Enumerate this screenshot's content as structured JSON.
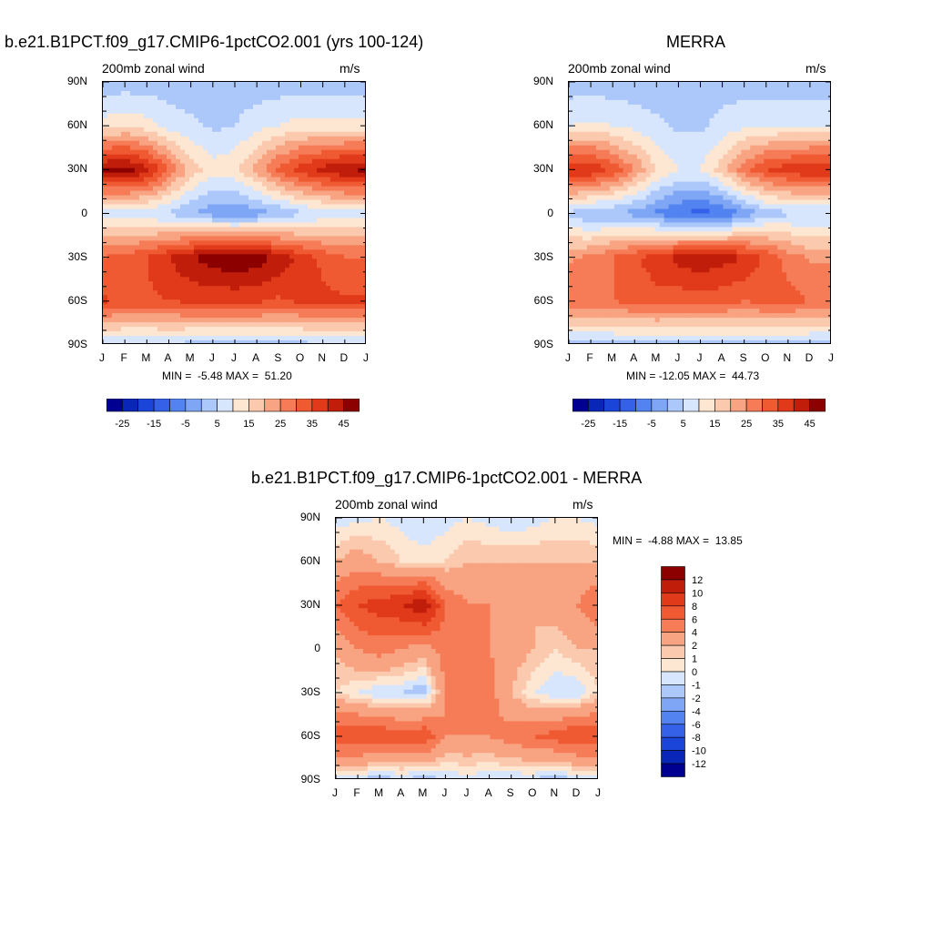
{
  "panels": [
    {
      "id": "model",
      "title": "b.e21.B1PCT.f09_g17.CMIP6-1pctCO2.001 (yrs 100-124)",
      "left_label": "200mb zonal wind",
      "units": "m/s",
      "min_label": "MIN =",
      "min_value": "-5.48",
      "max_label": "MAX =",
      "max_value": "51.20"
    },
    {
      "id": "merra",
      "title": "MERRA",
      "left_label": "200mb zonal wind",
      "units": "m/s",
      "min_label": "MIN =",
      "min_value": "-12.05",
      "max_label": "MAX =",
      "max_value": "44.73"
    },
    {
      "id": "diff",
      "title": "b.e21.B1PCT.f09_g17.CMIP6-1pctCO2.001 - MERRA",
      "left_label": "200mb zonal wind",
      "units": "m/s",
      "min_label": "MIN =",
      "min_value": "-4.88",
      "max_label": "MAX =",
      "max_value": "13.85"
    }
  ],
  "axes": {
    "y_ticks": [
      "90N",
      "60N",
      "30N",
      "0",
      "30S",
      "60S",
      "90S"
    ],
    "x_ticks": [
      "J",
      "F",
      "M",
      "A",
      "M",
      "J",
      "J",
      "A",
      "S",
      "O",
      "N",
      "D",
      "J"
    ]
  },
  "colorbar_abs": {
    "labels": [
      "-25",
      "-15",
      "-5",
      "5",
      "15",
      "25",
      "35",
      "45"
    ],
    "levels": [
      -30,
      -25,
      -20,
      -15,
      -10,
      -5,
      0,
      5,
      10,
      15,
      20,
      25,
      30,
      35,
      40,
      45,
      50
    ],
    "colors": [
      "#000090",
      "#0a26b8",
      "#1b45d8",
      "#3560e8",
      "#5283f0",
      "#7ea6f5",
      "#acc8fa",
      "#d7e6fc",
      "#fde6d2",
      "#fbc9ad",
      "#f8a381",
      "#f57c57",
      "#f05a33",
      "#e03a1a",
      "#c01e0a",
      "#8c0000"
    ]
  },
  "colorbar_diff": {
    "labels": [
      "12",
      "10",
      "8",
      "6",
      "4",
      "2",
      "1",
      "0",
      "-1",
      "-2",
      "-4",
      "-6",
      "-8",
      "-10",
      "-12"
    ],
    "colors": [
      "#8c0000",
      "#c01e0a",
      "#e03a1a",
      "#f05a33",
      "#f57c57",
      "#f8a381",
      "#fbc9ad",
      "#fde6d2",
      "#d7e6fc",
      "#acc8fa",
      "#7ea6f5",
      "#5283f0",
      "#3560e8",
      "#1b45d8",
      "#0a26b8",
      "#000090"
    ]
  },
  "chart_data": [
    {
      "type": "heatmap",
      "title": "b.e21.B1PCT.f09_g17.CMIP6-1pctCO2.001 (yrs 100-124)",
      "variable": "200mb zonal wind",
      "units": "m/s",
      "x": [
        "J",
        "F",
        "M",
        "A",
        "M",
        "J",
        "J",
        "A",
        "S",
        "O",
        "N",
        "D",
        "J"
      ],
      "y": [
        90,
        60,
        30,
        0,
        -30,
        -60,
        -90
      ],
      "values": [
        [
          2,
          2,
          2,
          2,
          2,
          2,
          2,
          2,
          2,
          2,
          2,
          2,
          2
        ],
        [
          12,
          14,
          12,
          8,
          6,
          4,
          5,
          8,
          10,
          12,
          12,
          12,
          12
        ],
        [
          46,
          48,
          42,
          30,
          18,
          12,
          14,
          22,
          32,
          38,
          42,
          45,
          46
        ],
        [
          8,
          6,
          6,
          4,
          0,
          -3,
          -4,
          -3,
          0,
          4,
          6,
          8,
          8
        ],
        [
          30,
          32,
          35,
          40,
          45,
          48,
          50,
          48,
          44,
          38,
          34,
          30,
          30
        ],
        [
          36,
          34,
          34,
          35,
          36,
          36,
          36,
          36,
          34,
          36,
          36,
          36,
          36
        ],
        [
          4,
          4,
          4,
          4,
          3,
          3,
          3,
          3,
          3,
          3,
          4,
          4,
          4
        ]
      ],
      "min": -5.48,
      "max": 51.2,
      "levels": [
        -30,
        -25,
        -20,
        -15,
        -10,
        -5,
        0,
        5,
        10,
        15,
        20,
        25,
        30,
        35,
        40,
        45,
        50
      ]
    },
    {
      "type": "heatmap",
      "title": "MERRA",
      "variable": "200mb zonal wind",
      "units": "m/s",
      "x": [
        "J",
        "F",
        "M",
        "A",
        "M",
        "J",
        "J",
        "A",
        "S",
        "O",
        "N",
        "D",
        "J"
      ],
      "y": [
        90,
        60,
        30,
        0,
        -30,
        -60,
        -90
      ],
      "values": [
        [
          2,
          2,
          2,
          2,
          2,
          2,
          2,
          2,
          2,
          2,
          2,
          2,
          2
        ],
        [
          10,
          11,
          10,
          8,
          6,
          4,
          4,
          7,
          9,
          10,
          10,
          10,
          10
        ],
        [
          40,
          40,
          34,
          25,
          15,
          10,
          10,
          18,
          28,
          35,
          38,
          40,
          40
        ],
        [
          4,
          0,
          0,
          -2,
          -6,
          -10,
          -12,
          -10,
          -4,
          2,
          4,
          4,
          4
        ],
        [
          24,
          26,
          30,
          34,
          38,
          42,
          44,
          42,
          40,
          34,
          28,
          24,
          24
        ],
        [
          30,
          30,
          30,
          32,
          33,
          32,
          32,
          32,
          30,
          32,
          32,
          30,
          30
        ],
        [
          3,
          3,
          3,
          3,
          3,
          3,
          3,
          3,
          3,
          3,
          3,
          3,
          3
        ]
      ],
      "min": -12.05,
      "max": 44.73,
      "levels": [
        -30,
        -25,
        -20,
        -15,
        -10,
        -5,
        0,
        5,
        10,
        15,
        20,
        25,
        30,
        35,
        40,
        45,
        50
      ]
    },
    {
      "type": "heatmap",
      "title": "b.e21.B1PCT.f09_g17.CMIP6-1pctCO2.001 - MERRA",
      "variable": "200mb zonal wind",
      "units": "m/s",
      "x": [
        "J",
        "F",
        "M",
        "A",
        "M",
        "J",
        "J",
        "A",
        "S",
        "O",
        "N",
        "D",
        "J"
      ],
      "y": [
        90,
        60,
        30,
        0,
        -30,
        -60,
        -90
      ],
      "values": [
        [
          -0.5,
          -0.5,
          0,
          -0.5,
          -1,
          -0.5,
          0,
          -0.5,
          -1,
          -0.5,
          0,
          0,
          -0.5
        ],
        [
          2,
          3,
          2,
          1,
          0.5,
          1,
          2,
          2,
          2,
          2,
          2,
          2,
          2
        ],
        [
          6,
          8,
          9,
          10,
          12,
          6,
          4,
          4,
          3,
          2,
          3,
          4,
          6
        ],
        [
          2,
          4,
          5,
          4,
          3,
          5,
          5,
          4,
          3,
          2,
          1,
          2,
          2
        ],
        [
          1,
          0,
          -1,
          -1,
          -2,
          4,
          4,
          5,
          2,
          0,
          -1,
          -1,
          1
        ],
        [
          8,
          8,
          8,
          7,
          8,
          4,
          4,
          4,
          5,
          6,
          7,
          8,
          8
        ],
        [
          -1,
          -1,
          -2,
          -1,
          -2,
          -1,
          -0.5,
          -1,
          -1,
          -1,
          -2,
          -1,
          -1
        ]
      ],
      "min": -4.88,
      "max": 13.85,
      "levels": [
        -12,
        -10,
        -8,
        -6,
        -4,
        -2,
        -1,
        0,
        1,
        2,
        4,
        6,
        8,
        10,
        12
      ]
    }
  ]
}
